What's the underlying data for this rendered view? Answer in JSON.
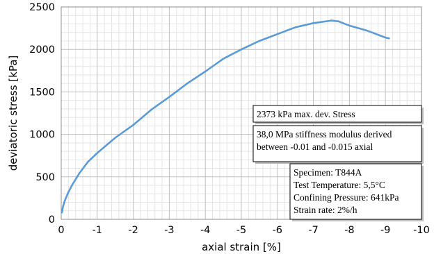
{
  "chart_data": {
    "type": "line",
    "xlabel": "axial strain [%]",
    "ylabel": "deviatoric stress [kPa]",
    "xlim": [
      0,
      -10
    ],
    "ylim": [
      0,
      2500
    ],
    "x_ticks": [
      0,
      -1,
      -2,
      -3,
      -4,
      -5,
      -6,
      -7,
      -8,
      -9,
      -10
    ],
    "x_tick_labels": [
      "0",
      "-1",
      "-2",
      "-3",
      "-4",
      "-5",
      "-6",
      "-7",
      "-8",
      "-9",
      "-10"
    ],
    "y_ticks": [
      0,
      500,
      1000,
      1500,
      2000,
      2500
    ],
    "y_tick_labels": [
      "0",
      "500",
      "1000",
      "1500",
      "2000",
      "2500"
    ],
    "grid": true,
    "series": [
      {
        "color": "#5b9bd5",
        "x": [
          -0.02,
          -0.05,
          -0.1,
          -0.2,
          -0.3,
          -0.5,
          -0.75,
          -1.0,
          -1.5,
          -2.0,
          -2.5,
          -3.0,
          -3.5,
          -4.0,
          -4.5,
          -5.0,
          -5.5,
          -6.0,
          -6.5,
          -7.0,
          -7.5,
          -7.7,
          -8.0,
          -8.5,
          -9.0,
          -9.1
        ],
        "y": [
          80,
          150,
          220,
          320,
          400,
          540,
          680,
          780,
          960,
          1110,
          1290,
          1440,
          1600,
          1740,
          1890,
          2000,
          2100,
          2180,
          2260,
          2310,
          2340,
          2330,
          2280,
          2220,
          2140,
          2130
        ]
      }
    ],
    "annotations": [
      {
        "name": "max-stress-note",
        "lines": [
          "2373 kPa max. dev. Stress"
        ]
      },
      {
        "name": "stiffness-note",
        "lines": [
          "38,0 MPa stiffness modulus derived",
          "between -0.01 and -0.015 axial"
        ]
      },
      {
        "name": "specimen-note",
        "lines": [
          "Specimen: T844A",
          "Test Temperature: 5,5°C",
          "Confining Pressure: 641kPa",
          "Strain rate: 2%/h"
        ]
      }
    ]
  }
}
